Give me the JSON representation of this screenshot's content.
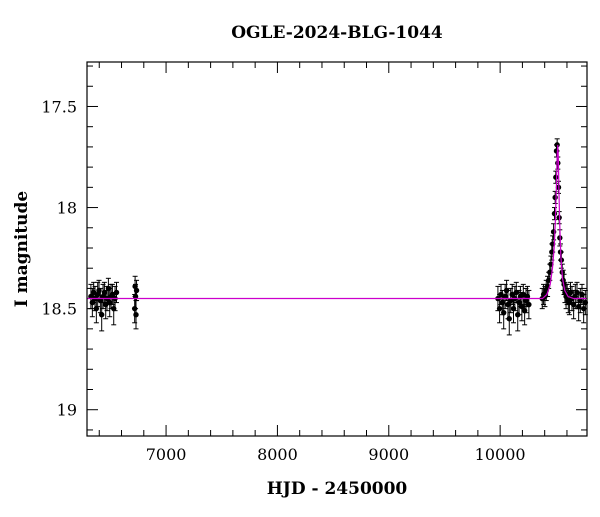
{
  "chart_data": {
    "type": "scatter",
    "title": "OGLE-2024-BLG-1044",
    "xlabel": "HJD - 2450000",
    "ylabel": "I magnitude",
    "xlim": [
      6290,
      10780
    ],
    "ylim": [
      19.13,
      17.28
    ],
    "y_inverted": true,
    "x_ticks": [
      7000,
      8000,
      9000,
      10000
    ],
    "x_tick_labels": [
      "7000",
      "8000",
      "9000",
      "10000"
    ],
    "y_ticks": [
      17.5,
      18,
      18.5,
      19
    ],
    "y_tick_labels": [
      "17.5",
      "18",
      "18.5",
      "19"
    ],
    "grid": false,
    "legend": "none",
    "colors": {
      "points": "#000000",
      "model": "#cc00cc",
      "frame": "#000000"
    },
    "series": [
      {
        "kind": "photometry",
        "x": [
          6325,
          6338,
          6350,
          6362,
          6374,
          6386,
          6398,
          6410,
          6422,
          6434,
          6446,
          6458,
          6470,
          6482,
          6494,
          6506,
          6518,
          6530,
          6542,
          6555,
          6718,
          6722,
          6726,
          6730,
          6735,
          9980,
          9995,
          10008,
          10020,
          10032,
          10045,
          10058,
          10070,
          10082,
          10095,
          10108,
          10120,
          10132,
          10145,
          10158,
          10170,
          10182,
          10195,
          10208,
          10220,
          10232,
          10245,
          10258,
          10378,
          10390,
          10402,
          10414,
          10426,
          10436,
          10446,
          10456,
          10464,
          10472,
          10480,
          10488,
          10494,
          10500,
          10506,
          10512,
          10518,
          10524,
          10530,
          10536,
          10542,
          10550,
          10558,
          10566,
          10574,
          10582,
          10592,
          10602,
          10612,
          10622,
          10632,
          10645,
          10660,
          10675,
          10690,
          10705,
          10720,
          10735,
          10750,
          10765
        ],
        "y": [
          18.44,
          18.47,
          18.42,
          18.45,
          18.5,
          18.43,
          18.41,
          18.46,
          18.53,
          18.44,
          18.42,
          18.48,
          18.45,
          18.4,
          18.47,
          18.44,
          18.43,
          18.5,
          18.45,
          18.42,
          18.5,
          18.39,
          18.44,
          18.53,
          18.41,
          18.45,
          18.5,
          18.43,
          18.47,
          18.52,
          18.44,
          18.41,
          18.48,
          18.55,
          18.46,
          18.43,
          18.5,
          18.45,
          18.42,
          18.53,
          18.47,
          18.44,
          18.49,
          18.43,
          18.51,
          18.46,
          18.44,
          18.48,
          18.45,
          18.43,
          18.44,
          18.41,
          18.39,
          18.36,
          18.32,
          18.28,
          18.22,
          18.18,
          18.12,
          18.03,
          17.95,
          17.85,
          17.72,
          17.69,
          17.78,
          17.9,
          18.05,
          18.15,
          18.22,
          18.26,
          18.32,
          18.36,
          18.38,
          18.42,
          18.44,
          18.43,
          18.46,
          18.47,
          18.42,
          18.45,
          18.48,
          18.44,
          18.42,
          18.49,
          18.46,
          18.43,
          18.5,
          18.47
        ],
        "yerr": [
          0.06,
          0.07,
          0.05,
          0.06,
          0.07,
          0.06,
          0.05,
          0.06,
          0.08,
          0.06,
          0.05,
          0.07,
          0.06,
          0.05,
          0.07,
          0.06,
          0.05,
          0.08,
          0.06,
          0.05,
          0.07,
          0.05,
          0.06,
          0.07,
          0.05,
          0.06,
          0.07,
          0.05,
          0.06,
          0.08,
          0.06,
          0.05,
          0.07,
          0.08,
          0.06,
          0.05,
          0.07,
          0.06,
          0.05,
          0.08,
          0.06,
          0.05,
          0.07,
          0.05,
          0.07,
          0.06,
          0.05,
          0.07,
          0.05,
          0.05,
          0.05,
          0.05,
          0.05,
          0.04,
          0.04,
          0.04,
          0.04,
          0.04,
          0.04,
          0.03,
          0.03,
          0.03,
          0.03,
          0.03,
          0.03,
          0.03,
          0.03,
          0.04,
          0.04,
          0.04,
          0.04,
          0.05,
          0.05,
          0.05,
          0.06,
          0.05,
          0.06,
          0.06,
          0.05,
          0.06,
          0.07,
          0.06,
          0.05,
          0.07,
          0.06,
          0.05,
          0.07,
          0.06
        ]
      },
      {
        "kind": "model",
        "x": [
          6290,
          10380,
          10420,
          10450,
          10470,
          10485,
          10495,
          10505,
          10512,
          10518,
          10523,
          10528,
          10535,
          10545,
          10560,
          10580,
          10610,
          10660,
          10780
        ],
        "y": [
          18.45,
          18.45,
          18.43,
          18.38,
          18.3,
          18.2,
          18.08,
          17.9,
          17.74,
          17.69,
          17.76,
          17.92,
          18.08,
          18.24,
          18.35,
          18.41,
          18.44,
          18.45,
          18.45
        ]
      }
    ]
  }
}
